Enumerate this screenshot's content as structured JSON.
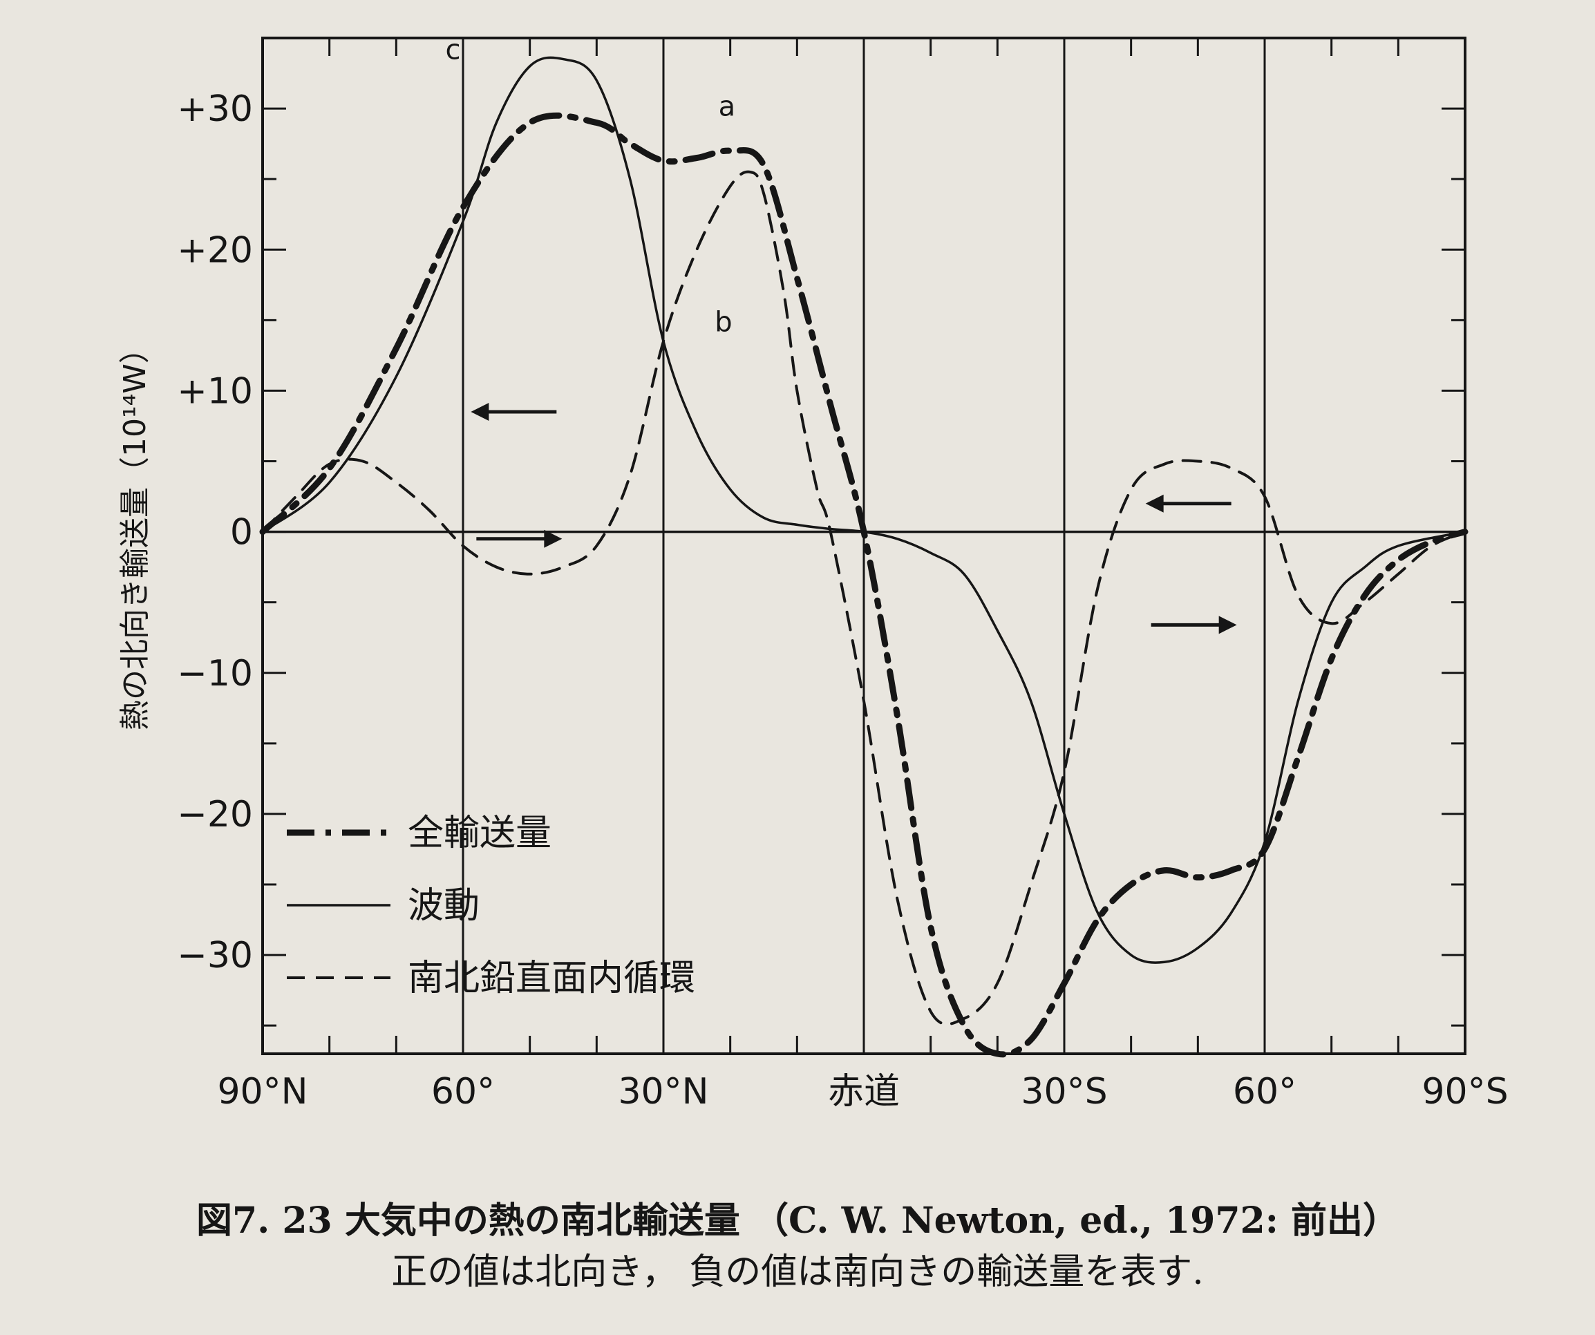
{
  "chart_data": {
    "type": "line",
    "ylabel": "熱の北向き輸送量（10¹⁴W）",
    "xlim": [
      90,
      -90
    ],
    "ylim": [
      -37,
      35
    ],
    "x_ticks": [
      {
        "value": 90,
        "label": "90°N"
      },
      {
        "value": 60,
        "label": "60°"
      },
      {
        "value": 30,
        "label": "30°N"
      },
      {
        "value": 0,
        "label": "赤道"
      },
      {
        "value": -30,
        "label": "30°S"
      },
      {
        "value": -60,
        "label": "60°"
      },
      {
        "value": -90,
        "label": "90°S"
      }
    ],
    "y_ticks": [
      {
        "value": 30,
        "label": "+30"
      },
      {
        "value": 20,
        "label": "+20"
      },
      {
        "value": 10,
        "label": "+10"
      },
      {
        "value": 0,
        "label": "0"
      },
      {
        "value": -10,
        "label": "−10"
      },
      {
        "value": -20,
        "label": "−20"
      },
      {
        "value": -30,
        "label": "−30"
      }
    ],
    "grid_x": true,
    "series": [
      {
        "name": "全輸送量",
        "letter": "a",
        "style": "dashdot",
        "x": [
          90,
          80,
          70,
          60,
          50,
          40,
          35,
          30,
          25,
          20,
          15,
          10,
          5,
          0,
          -5,
          -10,
          -15,
          -20,
          -25,
          -30,
          -35,
          -40,
          -45,
          -50,
          -55,
          -60,
          -65,
          -70,
          -75,
          -80,
          -85,
          -90
        ],
        "values": [
          0,
          4.5,
          13,
          23,
          29,
          29,
          27.5,
          26.3,
          26.5,
          27,
          26,
          18,
          9,
          0,
          -13,
          -28,
          -35,
          -37,
          -36,
          -32,
          -27.5,
          -25,
          -24,
          -24.5,
          -24,
          -22.5,
          -16,
          -9,
          -4.5,
          -2,
          -0.7,
          0
        ]
      },
      {
        "name": "波動",
        "letter": "c",
        "style": "solid",
        "x": [
          90,
          80,
          70,
          60,
          55,
          50,
          45,
          40,
          35,
          30,
          25,
          20,
          15,
          10,
          5,
          0,
          -5,
          -10,
          -15,
          -20,
          -25,
          -30,
          -35,
          -40,
          -45,
          -50,
          -55,
          -60,
          -65,
          -70,
          -75,
          -80,
          -90
        ],
        "values": [
          0,
          3.5,
          11,
          22,
          29,
          33,
          33.5,
          32,
          25,
          13.5,
          7,
          3,
          1,
          0.5,
          0.2,
          0,
          -0.5,
          -1.5,
          -3,
          -7,
          -12,
          -20,
          -27,
          -30,
          -30.5,
          -29.5,
          -27,
          -22,
          -12,
          -5,
          -2.5,
          -1,
          0
        ]
      },
      {
        "name": "南北鉛直面内循環",
        "letter": "b",
        "style": "dashed",
        "x": [
          90,
          85,
          80,
          75,
          70,
          65,
          60,
          55,
          50,
          45,
          40,
          35,
          30,
          25,
          20,
          17,
          15,
          12,
          10,
          7,
          5,
          0,
          -5,
          -10,
          -15,
          -20,
          -25,
          -30,
          -35,
          -40,
          -45,
          -50,
          -55,
          -60,
          -65,
          -70,
          -75,
          -80,
          -85,
          -90
        ],
        "values": [
          0,
          2.5,
          4.8,
          5,
          3.5,
          1.5,
          -1,
          -2.5,
          -3,
          -2.5,
          -1,
          4,
          13.5,
          20,
          24.5,
          25.5,
          24,
          17,
          10,
          3,
          0,
          -12,
          -26,
          -34,
          -34.5,
          -32,
          -25,
          -17,
          -4,
          3,
          4.8,
          5,
          4.5,
          2.5,
          -4.5,
          -6.5,
          -5,
          -3,
          -1,
          0
        ]
      }
    ],
    "curve_letters": [
      "a",
      "b",
      "c"
    ],
    "arrows": [
      {
        "dir": "left"
      },
      {
        "dir": "right"
      },
      {
        "dir": "left"
      },
      {
        "dir": "right"
      }
    ],
    "legend_position": "lower-left"
  },
  "caption": {
    "line1": "図7. 23 大気中の熱の南北輸送量 （C. W. Newton, ed., 1972: 前出）",
    "line2": "正の値は北向き， 負の値は南向きの輸送量を表す."
  }
}
